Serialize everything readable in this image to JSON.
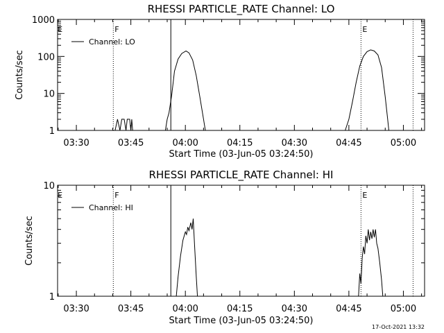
{
  "chart_data": [
    {
      "type": "line",
      "title": "RHESSI PARTICLE_RATE Channel: LO",
      "xlabel": "Start Time (03-Jun-05 03:24:50)",
      "ylabel": "Counts/sec",
      "x_unit": "UT time (HH:MM)",
      "xlim": [
        "03:24:50",
        "05:05:50"
      ],
      "y_scale": "log",
      "ylim": [
        1,
        1000
      ],
      "x_ticks": [
        "03:30",
        "03:45",
        "04:00",
        "04:15",
        "04:30",
        "04:45",
        "05:00"
      ],
      "y_ticks": [
        "1",
        "10",
        "100",
        "1000"
      ],
      "grid": false,
      "legend": {
        "position": "top-left",
        "entries": [
          "Channel: LO"
        ]
      },
      "event_markers": [
        {
          "time": "03:40:10",
          "style": "dotted",
          "label": "F"
        },
        {
          "time": "03:56:00",
          "style": "solid",
          "label": ""
        },
        {
          "time": "04:48:20",
          "style": "dotted",
          "label": "E"
        },
        {
          "time": "05:02:40",
          "style": "dotted",
          "label": ""
        }
      ],
      "extra_labels": [
        {
          "time": "03:25:15",
          "text": "E"
        }
      ],
      "series": [
        {
          "name": "Channel: LO",
          "points": [
            [
              "03:40:40",
              1
            ],
            [
              "03:41:20",
              2
            ],
            [
              "03:42:00",
              1
            ],
            [
              "03:42:30",
              2
            ],
            [
              "03:43:10",
              2
            ],
            [
              "03:43:40",
              1
            ],
            [
              "03:44:00",
              2
            ],
            [
              "03:44:40",
              2
            ],
            [
              "03:45:00",
              1
            ],
            [
              "03:45:15",
              2
            ],
            [
              "03:45:30",
              1
            ],
            [
              "03:48:00",
              1
            ],
            [
              "03:54:30",
              1
            ],
            [
              "03:55:00",
              2
            ],
            [
              "03:55:30",
              3
            ],
            [
              "03:56:15",
              9
            ],
            [
              "03:57:00",
              40
            ],
            [
              "03:58:00",
              85
            ],
            [
              "03:59:00",
              120
            ],
            [
              "04:00:10",
              140
            ],
            [
              "04:01:00",
              125
            ],
            [
              "04:02:00",
              80
            ],
            [
              "04:03:00",
              30
            ],
            [
              "04:04:00",
              8
            ],
            [
              "04:05:00",
              2
            ],
            [
              "04:05:30",
              1
            ]
          ]
        },
        {
          "name": "Channel: LO",
          "points": [
            [
              "04:44:00",
              1
            ],
            [
              "04:45:00",
              2
            ],
            [
              "04:46:00",
              6
            ],
            [
              "04:47:00",
              20
            ],
            [
              "04:48:00",
              55
            ],
            [
              "04:49:00",
              100
            ],
            [
              "04:50:00",
              135
            ],
            [
              "04:51:00",
              150
            ],
            [
              "04:52:00",
              140
            ],
            [
              "04:53:00",
              110
            ],
            [
              "04:54:00",
              50
            ],
            [
              "04:55:00",
              8
            ],
            [
              "04:55:40",
              2
            ],
            [
              "04:56:00",
              1
            ]
          ]
        }
      ]
    },
    {
      "type": "line",
      "title": "RHESSI PARTICLE_RATE Channel: HI",
      "xlabel": "Start Time (03-Jun-05 03:24:50)",
      "ylabel": "Counts/sec",
      "x_unit": "UT time (HH:MM)",
      "xlim": [
        "03:24:50",
        "05:05:50"
      ],
      "y_scale": "log",
      "ylim": [
        1,
        10
      ],
      "x_ticks": [
        "03:30",
        "03:45",
        "04:00",
        "04:15",
        "04:30",
        "04:45",
        "05:00"
      ],
      "y_ticks": [
        "1",
        "10"
      ],
      "grid": false,
      "legend": {
        "position": "top-left",
        "entries": [
          "Channel: HI"
        ]
      },
      "event_markers": [
        {
          "time": "03:40:10",
          "style": "dotted",
          "label": "F"
        },
        {
          "time": "03:56:00",
          "style": "solid",
          "label": ""
        },
        {
          "time": "04:48:20",
          "style": "dotted",
          "label": "E"
        },
        {
          "time": "05:02:40",
          "style": "dotted",
          "label": ""
        }
      ],
      "extra_labels": [
        {
          "time": "03:25:15",
          "text": "E"
        }
      ],
      "series": [
        {
          "name": "Channel: HI",
          "points": [
            [
              "03:57:30",
              1
            ],
            [
              "03:58:00",
              1.5
            ],
            [
              "03:58:40",
              2.3
            ],
            [
              "03:59:20",
              3.2
            ],
            [
              "04:00:00",
              3.8
            ],
            [
              "04:00:20",
              3.6
            ],
            [
              "04:00:40",
              4.2
            ],
            [
              "04:01:00",
              3.9
            ],
            [
              "04:01:30",
              4.6
            ],
            [
              "04:01:50",
              4.0
            ],
            [
              "04:02:10",
              5.0
            ],
            [
              "04:02:30",
              3.0
            ],
            [
              "04:03:00",
              1.5
            ],
            [
              "04:03:20",
              1
            ]
          ]
        },
        {
          "name": "Channel: HI",
          "points": [
            [
              "04:47:40",
              1
            ],
            [
              "04:48:00",
              1.6
            ],
            [
              "04:48:20",
              1.3
            ],
            [
              "04:48:40",
              2.2
            ],
            [
              "04:49:00",
              2.8
            ],
            [
              "04:49:20",
              2.4
            ],
            [
              "04:49:40",
              3.5
            ],
            [
              "04:50:00",
              3.0
            ],
            [
              "04:50:20",
              4.0
            ],
            [
              "04:50:40",
              3.2
            ],
            [
              "04:51:00",
              3.8
            ],
            [
              "04:51:20",
              3.3
            ],
            [
              "04:51:40",
              4.0
            ],
            [
              "04:52:00",
              3.4
            ],
            [
              "04:52:20",
              4.0
            ],
            [
              "04:52:40",
              3.0
            ],
            [
              "04:53:00",
              2.7
            ],
            [
              "04:53:30",
              2.0
            ],
            [
              "04:54:00",
              1.4
            ],
            [
              "04:54:20",
              1
            ]
          ]
        }
      ]
    }
  ],
  "footer": {
    "timestamp": "17-Oct-2021 13:32"
  }
}
